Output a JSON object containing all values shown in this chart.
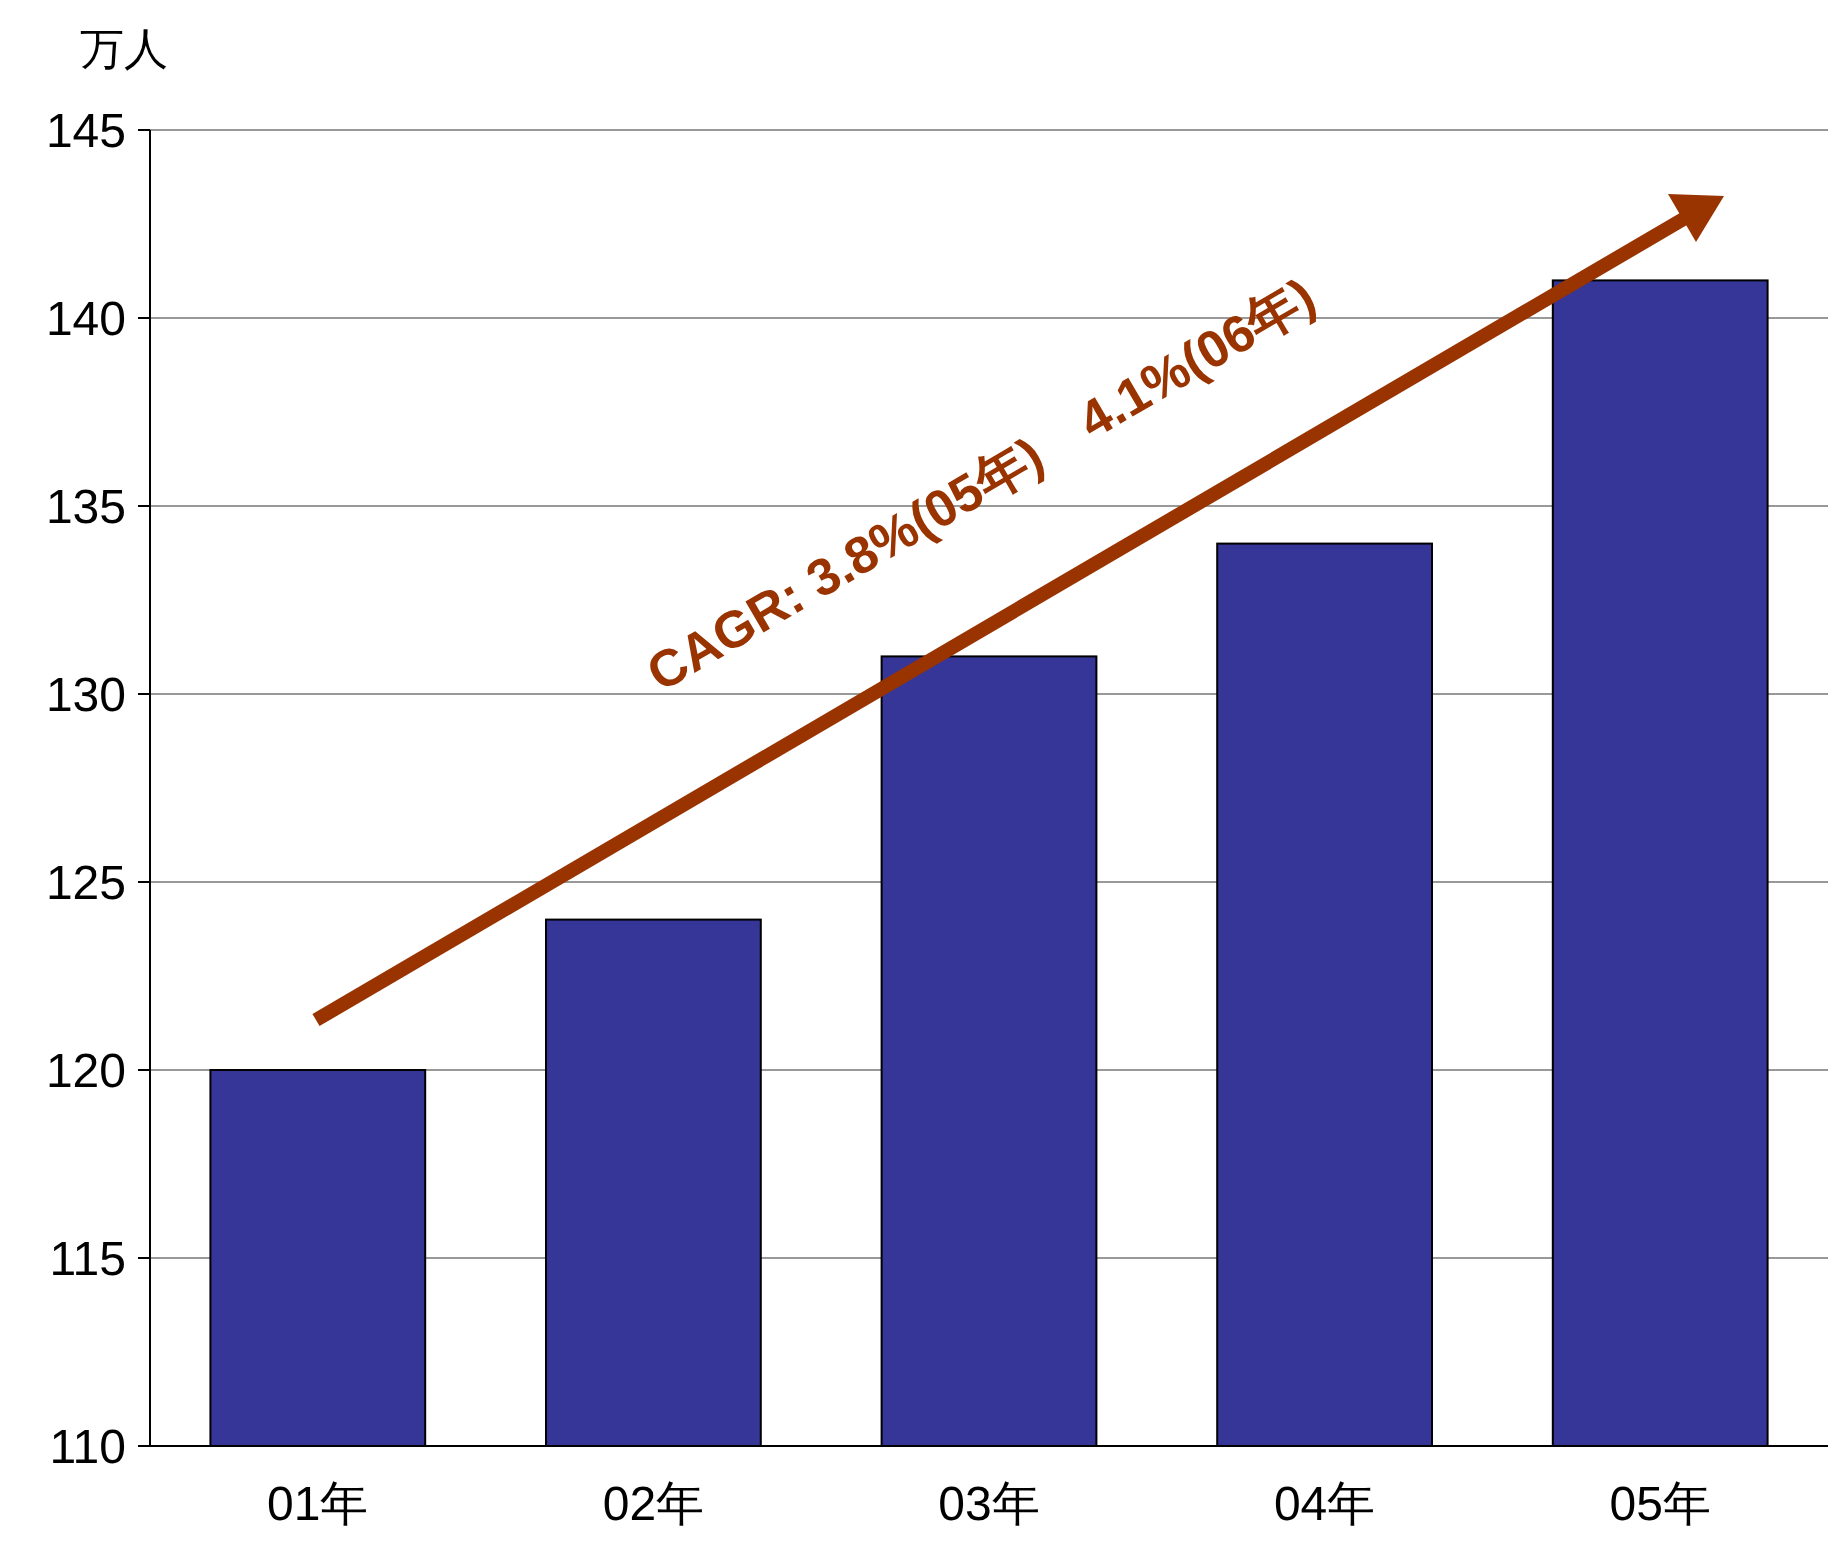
{
  "chart_data": {
    "type": "bar",
    "ylabel": "万人",
    "categories": [
      "01年",
      "02年",
      "03年",
      "04年",
      "05年"
    ],
    "values": [
      120,
      124,
      131,
      134,
      141
    ],
    "color": "#363699",
    "ylim": [
      110,
      145
    ],
    "yticks": [
      110,
      115,
      120,
      125,
      130,
      135,
      140,
      145
    ],
    "grid": "y",
    "annotations": [
      "CAGR: 3.8%(05年)　4.1%(06年)"
    ]
  }
}
